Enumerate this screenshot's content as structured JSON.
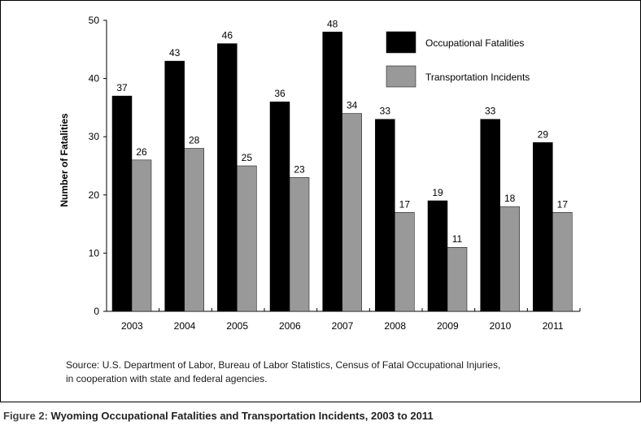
{
  "chart_data": {
    "type": "bar",
    "categories": [
      "2003",
      "2004",
      "2005",
      "2006",
      "2007",
      "2008",
      "2009",
      "2010",
      "2011"
    ],
    "series": [
      {
        "name": "Occupational Fatalities",
        "values": [
          37,
          43,
          46,
          36,
          48,
          33,
          19,
          33,
          29
        ],
        "color": "#000000"
      },
      {
        "name": "Transportation Incidents",
        "values": [
          26,
          28,
          25,
          23,
          34,
          17,
          11,
          18,
          17
        ],
        "color": "#999999"
      }
    ],
    "title": "",
    "xlabel": "",
    "ylabel": "Number of Fatalities",
    "ylim": [
      0,
      50
    ],
    "yticks": [
      0,
      10,
      20,
      30,
      40,
      50
    ],
    "grid": false,
    "legend": "top-right",
    "data_labels": true
  },
  "source_lines": [
    "Source: U.S. Department of Labor, Bureau of Labor Statistics, Census of Fatal Occupational Injuries,",
    "in cooperation with state and federal agencies."
  ],
  "caption": {
    "label": "Figure 2:",
    "title": "Wyoming Occupational Fatalities and Transportation Incidents, 2003 to 2011"
  }
}
